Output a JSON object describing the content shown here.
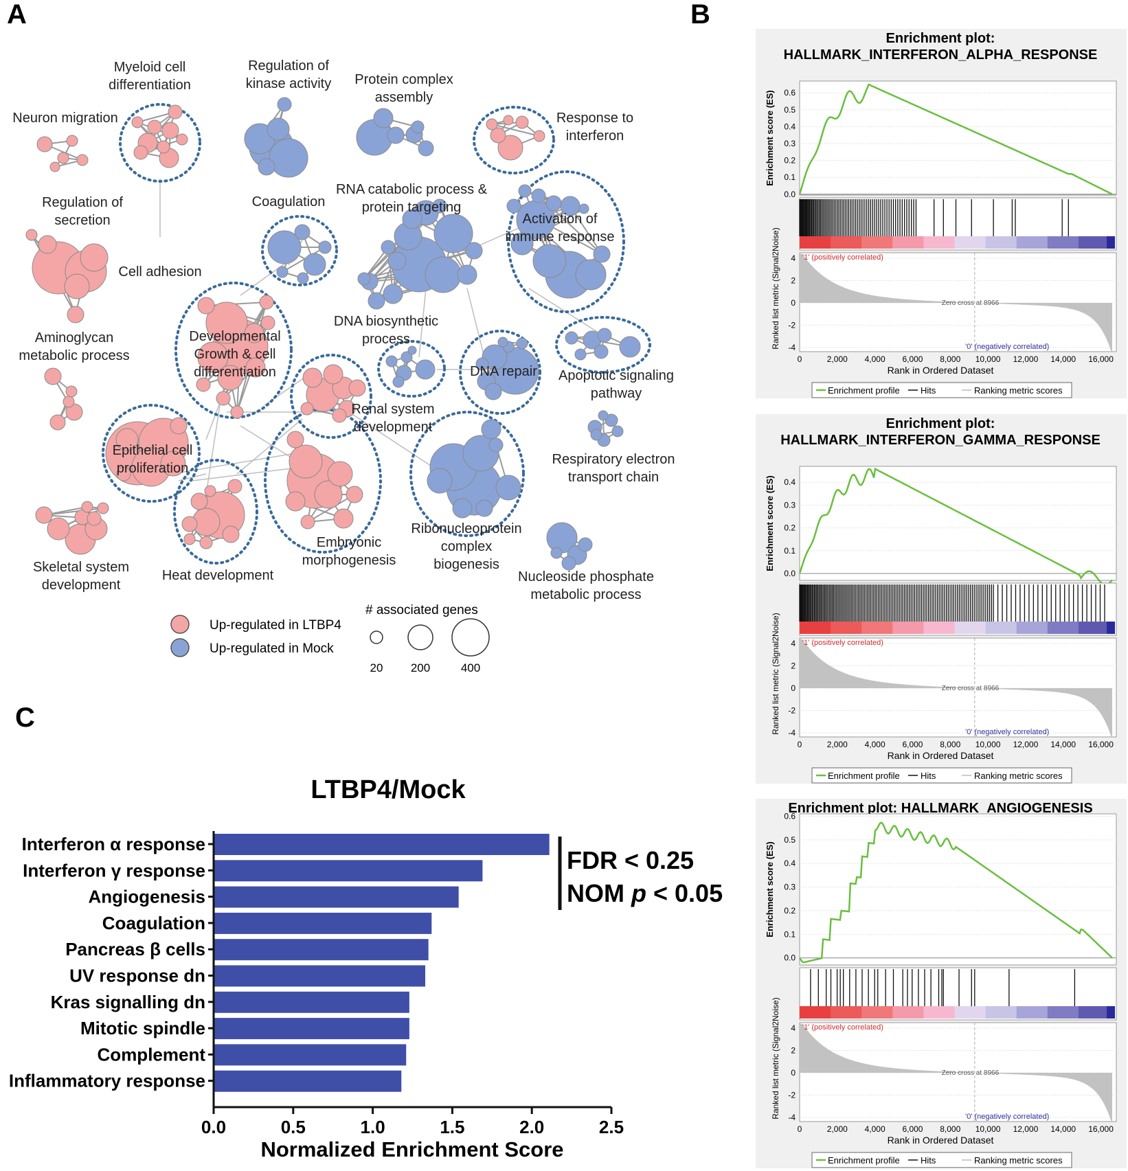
{
  "colors": {
    "up_ltbp4": "#f4a6a6",
    "up_mock": "#8aa3d6",
    "bar": "#3f4fa8",
    "green": "#6abf3f",
    "ring": "#3a6a9a"
  },
  "panel_labels": {
    "a": "A",
    "b": "B",
    "c": "C"
  },
  "network": {
    "clusters": [
      {
        "label": "Myeloid cell differentiation",
        "lines": [
          "Myeloid cell",
          "differentiation"
        ],
        "group": "up_ltbp4"
      },
      {
        "label": "Regulation of kinase activity",
        "lines": [
          "Regulation of",
          "kinase activity"
        ],
        "group": "up_mock"
      },
      {
        "label": "Protein complex assembly",
        "lines": [
          "Protein complex",
          "assembly"
        ],
        "group": "up_mock"
      },
      {
        "label": "Neuron migration",
        "lines": [
          "Neuron migration"
        ],
        "group": "up_ltbp4"
      },
      {
        "label": "Response to interferon",
        "lines": [
          "Response to",
          "interferon"
        ],
        "group": "up_ltbp4"
      },
      {
        "label": "Regulation of secretion",
        "lines": [
          "Regulation of",
          "secretion"
        ],
        "group": "up_ltbp4"
      },
      {
        "label": "Coagulation",
        "lines": [
          "Coagulation"
        ],
        "group": "up_mock"
      },
      {
        "label": "RNA catabolic process & protein targeting",
        "lines": [
          "RNA catabolic process &",
          "protein targeting"
        ],
        "group": "up_mock"
      },
      {
        "label": "Activation of immune response",
        "lines": [
          "Activation of",
          "immune response"
        ],
        "group": "up_mock"
      },
      {
        "label": "Cell adhesion",
        "lines": [
          "Cell adhesion"
        ],
        "group": "up_ltbp4"
      },
      {
        "label": "Aminoglycan metabolic process",
        "lines": [
          "Aminoglycan",
          "metabolic process"
        ],
        "group": "up_ltbp4"
      },
      {
        "label": "Developmental Growth & cell differentiation",
        "lines": [
          "Developmental",
          "Growth & cell",
          "differentiation"
        ],
        "group": "up_ltbp4"
      },
      {
        "label": "DNA biosynthetic process",
        "lines": [
          "DNA biosynthetic",
          "process"
        ],
        "group": "up_mock"
      },
      {
        "label": "DNA repair",
        "lines": [
          "DNA repair"
        ],
        "group": "up_mock"
      },
      {
        "label": "Apoptotic signaling pathway",
        "lines": [
          "Apoptotic signaling",
          "pathway"
        ],
        "group": "up_mock"
      },
      {
        "label": "Renal system development",
        "lines": [
          "Renal system",
          "development"
        ],
        "group": "up_ltbp4"
      },
      {
        "label": "Epithelial cell proliferation",
        "lines": [
          "Epithelial cell",
          "proliferation"
        ],
        "group": "up_ltbp4"
      },
      {
        "label": "Respiratory electron transport chain",
        "lines": [
          "Respiratory electron",
          "transport chain"
        ],
        "group": "up_mock"
      },
      {
        "label": "Skeletal system development",
        "lines": [
          "Skeletal system",
          "development"
        ],
        "group": "up_ltbp4"
      },
      {
        "label": "Heat development",
        "lines": [
          "Heat development"
        ],
        "group": "up_ltbp4"
      },
      {
        "label": "Embryonic morphogenesis",
        "lines": [
          "Embryonic",
          "morphogenesis"
        ],
        "group": "up_ltbp4"
      },
      {
        "label": "Ribonucleoprotein complex biogenesis",
        "lines": [
          "Ribonucleoprotein",
          "complex",
          "biogenesis"
        ],
        "group": "up_mock"
      },
      {
        "label": "Nucleoside phosphate metabolic process",
        "lines": [
          "Nucleoside phosphate",
          "metabolic process"
        ],
        "group": "up_mock"
      }
    ],
    "legend": {
      "up_ltbp4": "Up-regulated in LTBP4",
      "up_mock": "Up-regulated in Mock",
      "size_title": "# associated genes",
      "sizes": [
        "20",
        "200",
        "400"
      ]
    }
  },
  "gsea": [
    {
      "title_lines": [
        "Enrichment plot:",
        "HALLMARK_INTERFERON_ALPHA_RESPONSE"
      ],
      "es_ylabel": "Enrichment score (ES)",
      "es_ticks": [
        "0.6",
        "0.5",
        "0.4",
        "0.3",
        "0.2",
        "0.1",
        "0.0"
      ],
      "es_max": 0.65,
      "rank_ylabel": "Ranked list metric (Signal2Noise)",
      "rank_ticks": [
        "4",
        "2",
        "0",
        "-2",
        "-4"
      ],
      "x_ticks": [
        "0",
        "2,000",
        "4,000",
        "6,000",
        "8,000",
        "10,000",
        "12,000",
        "14,000",
        "16,000"
      ],
      "xlabel": "Rank in Ordered Dataset",
      "pos_label": "'1' (positively correlated)",
      "neg_label": "'0' (negatively correlated)",
      "zero_cross": "Zero cross at 8966",
      "legend": [
        "Enrichment profile",
        "Hits",
        "Ranking metric scores"
      ]
    },
    {
      "title_lines": [
        "Enrichment plot:",
        "HALLMARK_INTERFERON_GAMMA_RESPONSE"
      ],
      "es_ylabel": "Enrichment score (ES)",
      "es_ticks": [
        "0.4",
        "0.3",
        "0.2",
        "0.1",
        "0.0"
      ],
      "es_max": 0.46,
      "rank_ylabel": "Ranked list metric (Signal2Noise)",
      "rank_ticks": [
        "4",
        "2",
        "0",
        "-2",
        "-4"
      ],
      "x_ticks": [
        "0",
        "2,000",
        "4,000",
        "6,000",
        "8,000",
        "10,000",
        "12,000",
        "14,000",
        "16,000"
      ],
      "xlabel": "Rank in Ordered Dataset",
      "pos_label": "'1' (positively correlated)",
      "neg_label": "'0' (negatively correlated)",
      "zero_cross": "Zero cross at 8966",
      "legend": [
        "Enrichment profile",
        "Hits",
        "Ranking metric scores"
      ]
    },
    {
      "title_lines": [
        "Enrichment plot: HALLMARK_ANGIOGENESIS"
      ],
      "es_ylabel": "Enrichment score (ES)",
      "es_ticks": [
        "0.6",
        "0.5",
        "0.4",
        "0.3",
        "0.2",
        "0.1",
        "0.0"
      ],
      "es_max": 0.58,
      "rank_ylabel": "Ranked list metric (Signal2Noise)",
      "rank_ticks": [
        "4",
        "2",
        "0",
        "-2",
        "-4"
      ],
      "x_ticks": [
        "0",
        "2,000",
        "4,000",
        "6,000",
        "8,000",
        "10,000",
        "12,000",
        "14,000",
        "16,000"
      ],
      "xlabel": "Rank in Ordered Dataset",
      "pos_label": "'1' (positively correlated)",
      "neg_label": "'0' (negatively correlated)",
      "zero_cross": "Zero cross at 8966",
      "legend": [
        "Enrichment profile",
        "Hits",
        "Ranking metric scores"
      ]
    }
  ],
  "chart_data": {
    "type": "bar",
    "orientation": "horizontal",
    "title": "LTBP4/Mock",
    "categories": [
      "Interferon α response",
      "Interferon γ response",
      "Angiogenesis",
      "Coagulation",
      "Pancreas β cells",
      "UV response dn",
      "Kras signalling dn",
      "Mitotic spindle",
      "Complement",
      "Inflammatory response"
    ],
    "values": [
      2.11,
      1.69,
      1.54,
      1.37,
      1.35,
      1.33,
      1.23,
      1.23,
      1.21,
      1.18
    ],
    "xlabel": "Normalized Enrichment Score",
    "xlim": [
      0,
      2.5
    ],
    "x_ticks": [
      "0.0",
      "0.5",
      "1.0",
      "1.5",
      "2.0",
      "2.5"
    ],
    "annotation": {
      "line1": "FDR < 0.25",
      "line2_prefix": "NOM ",
      "line2_italic": "p",
      "line2_suffix": " < 0.05"
    }
  }
}
